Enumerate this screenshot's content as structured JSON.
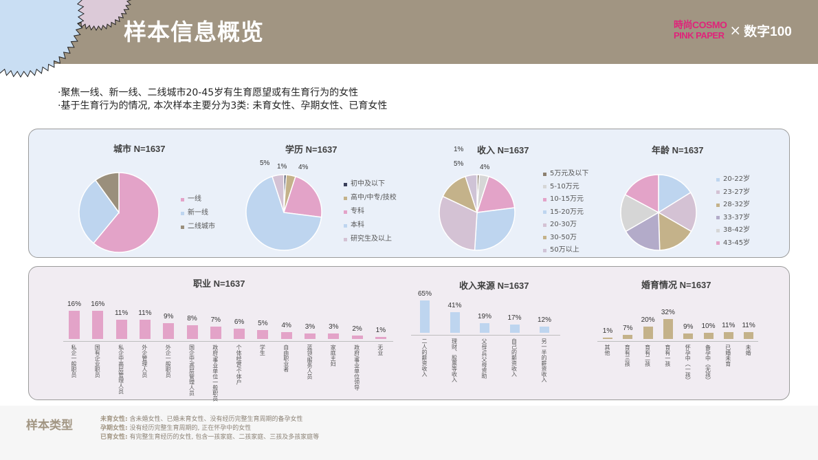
{
  "header": {
    "title": "样本信息概览",
    "logo": {
      "brand_line1": "時尚COSMO",
      "brand_line2": "PINK PAPER",
      "times": "×",
      "partner": "数字100"
    }
  },
  "bullets": [
    "·聚焦一线、新一线、二线城市20-45岁有生育愿望或有生育行为的女性",
    "·基于生育行为的情况, 本次样本主要分为3类: 未育女性、孕期女性、已育女性"
  ],
  "colors": {
    "header_bg": "#a19582",
    "pink": "#e3a3c8",
    "blue": "#bed5ef",
    "tan": "#c4b28a",
    "taupe": "#9a8f7c",
    "mauve": "#d4c2d4",
    "lavender": "#b3abc9",
    "grey": "#d6d6d6",
    "navy": "#3a3f5a"
  },
  "chart_data": [
    {
      "id": "city",
      "type": "pie",
      "title": "城市 N=1637",
      "categories": [
        "一线",
        "新一线",
        "二线城市"
      ],
      "values": [
        61,
        29,
        10
      ],
      "colors": [
        "#e3a3c8",
        "#bed5ef",
        "#9a8f7c"
      ],
      "labels": [
        "61%",
        "29%",
        "10%"
      ]
    },
    {
      "id": "education",
      "type": "pie",
      "title": "学历 N=1637",
      "categories": [
        "初中及以下",
        "高中/中专/技校",
        "专科",
        "本科",
        "研究生及以上"
      ],
      "values": [
        1,
        4,
        22,
        68,
        5
      ],
      "colors": [
        "#3a3f5a",
        "#c4b28a",
        "#e3a3c8",
        "#bed5ef",
        "#d4c2d4"
      ],
      "labels": [
        "1%",
        "4%",
        "22%",
        "68%",
        "5%"
      ]
    },
    {
      "id": "income",
      "type": "pie",
      "title": "收入 N=1637",
      "categories": [
        "5万元及以下",
        "5-10万元",
        "10-15万元",
        "15-20万元",
        "20-30万",
        "30-50万",
        "50万以上"
      ],
      "values": [
        1,
        4,
        18,
        28,
        31,
        13,
        5
      ],
      "colors": [
        "#8c8070",
        "#d6d6d6",
        "#e3a3c8",
        "#bed5ef",
        "#d4c2d4",
        "#c4b28a",
        "#cfc3d6"
      ],
      "labels": [
        "1%",
        "4%",
        "18%",
        "28%",
        "31%",
        "13%",
        "5%"
      ]
    },
    {
      "id": "age",
      "type": "pie",
      "title": "年龄 N=1637",
      "categories": [
        "20-22岁",
        "23-27岁",
        "28-32岁",
        "33-37岁",
        "38-42岁",
        "43-45岁"
      ],
      "values": [
        16,
        17,
        16,
        17,
        16,
        17
      ],
      "colors": [
        "#bed5ef",
        "#d4c2d4",
        "#c4b28a",
        "#b3abc9",
        "#d6d6d6",
        "#e3a3c8"
      ],
      "labels": [
        "16%",
        "17%",
        "16%",
        "17%",
        "16%",
        "17%"
      ]
    },
    {
      "id": "occupation",
      "type": "bar",
      "title": "职业 N=1637",
      "categories": [
        "私企一般职员",
        "国有企业职员",
        "私企中高层管理人员",
        "外企管理人员",
        "外企一般职员",
        "国企中/高层管理人员",
        "政府/事业单位一般职员",
        "个体经营/个体户",
        "学生",
        "自由职业者",
        "蓝领/服务人员",
        "家庭主妇",
        "政府/事业单位领导",
        "无业"
      ],
      "values": [
        16,
        16,
        11,
        11,
        9,
        8,
        7,
        6,
        5,
        4,
        3,
        3,
        2,
        1
      ],
      "labels": [
        "16%",
        "16%",
        "11%",
        "11%",
        "9%",
        "8%",
        "7%",
        "6%",
        "5%",
        "4%",
        "3%",
        "3%",
        "2%",
        "1%"
      ],
      "color": "#e3a3c8",
      "ylim": [
        0,
        20
      ]
    },
    {
      "id": "income_source",
      "type": "bar",
      "title": "收入来源 N=1637",
      "categories": [
        "二人的薪资收入",
        "理财、股票等收入",
        "父母/兵父母资助",
        "自己的薪资收入",
        "另一半的薪资收入"
      ],
      "values": [
        65,
        41,
        19,
        17,
        12
      ],
      "labels": [
        "65%",
        "41%",
        "19%",
        "17%",
        "12%"
      ],
      "color": "#bed5ef",
      "ylim": [
        0,
        70
      ]
    },
    {
      "id": "marital",
      "type": "bar",
      "title": "婚育情况 N=1637",
      "categories": [
        "其他",
        "育有三孩",
        "育有二孩",
        "育有一孩",
        "怀孕中（一孩）",
        "备孕中（无孩）",
        "已婚未育",
        "未婚"
      ],
      "values": [
        1,
        7,
        20,
        32,
        9,
        10,
        11,
        11
      ],
      "labels": [
        "1%",
        "7%",
        "20%",
        "32%",
        "9%",
        "10%",
        "11%",
        "11%"
      ],
      "color": "#c4b28a",
      "ylim": [
        0,
        40
      ]
    }
  ],
  "footer": {
    "title": "样本类型",
    "lines": [
      {
        "term": "未育女性:",
        "desc": " 含未婚女性、已婚未育女性、没有经历完整生育周期的备孕女性"
      },
      {
        "term": "孕期女性:",
        "desc": " 没有经历完整生育周期的, 正在怀孕中的女性"
      },
      {
        "term": "已育女性:",
        "desc": " 有完整生育经历的女性, 包含一孩家庭、二孩家庭、三孩及多孩家庭等"
      }
    ]
  }
}
